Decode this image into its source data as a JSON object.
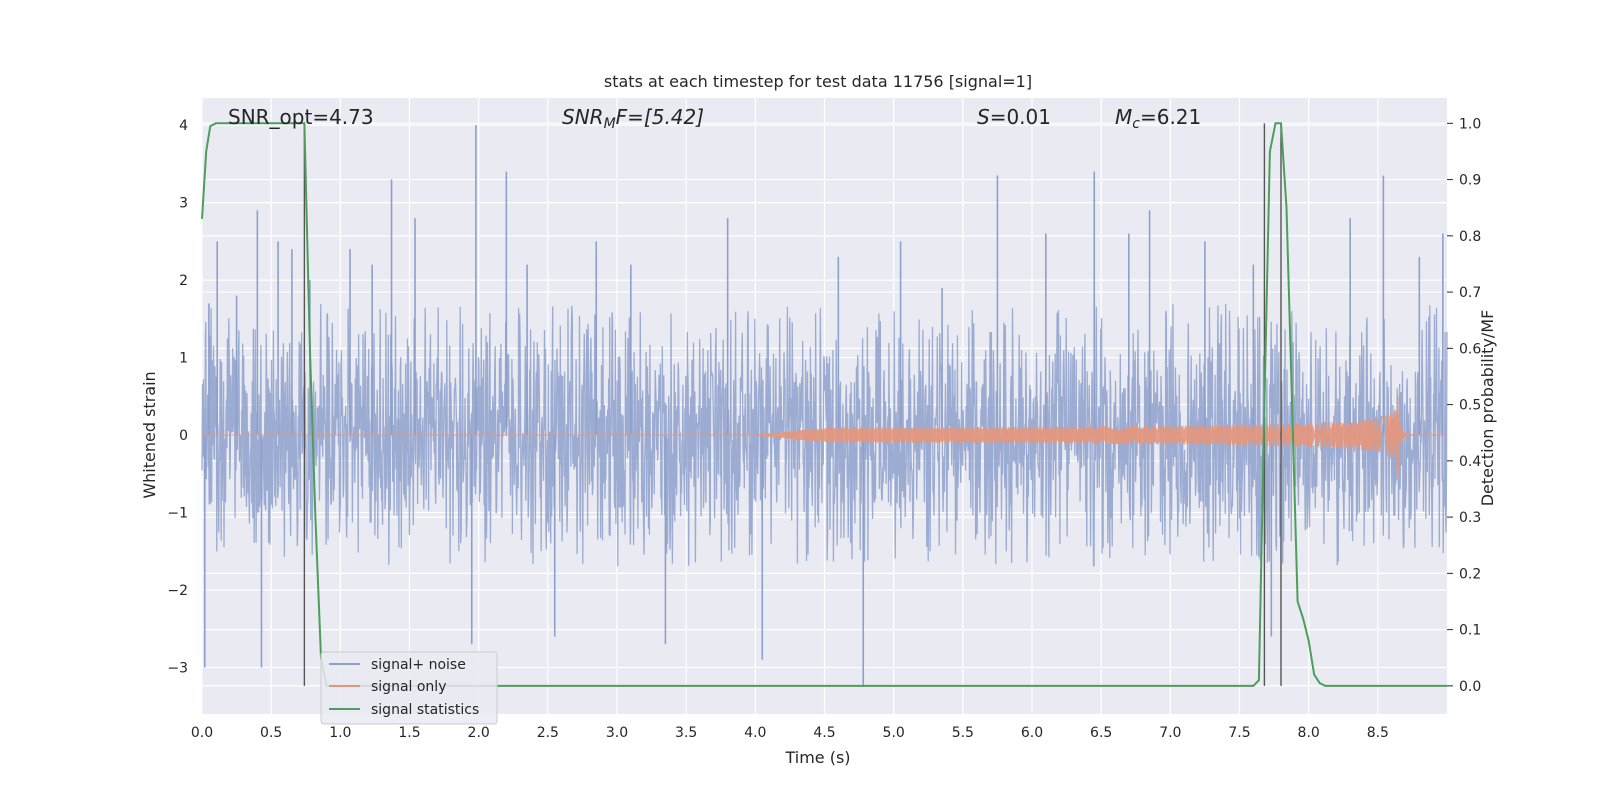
{
  "chart_data": {
    "type": "line",
    "title": "stats at each timestep for test data 11756 [signal=1]",
    "xlabel": "Time (s)",
    "ylabel_left": "Whitened strain",
    "ylabel_right": "Detection probability/MF",
    "xlim": [
      0.0,
      9.0
    ],
    "ylim_left": [
      -3.6,
      4.35
    ],
    "ylim_right": [
      -0.05,
      1.045
    ],
    "xticks": [
      "0.0",
      "0.5",
      "1.0",
      "1.5",
      "2.0",
      "2.5",
      "3.0",
      "3.5",
      "4.0",
      "4.5",
      "5.0",
      "5.5",
      "6.0",
      "6.5",
      "7.0",
      "7.5",
      "8.0",
      "8.5"
    ],
    "yticks_left": [
      "4",
      "3",
      "2",
      "1",
      "0",
      "−1",
      "−2",
      "−3"
    ],
    "yticks_right": [
      "1.0",
      "0.9",
      "0.8",
      "0.7",
      "0.6",
      "0.5",
      "0.4",
      "0.3",
      "0.2",
      "0.1",
      "0.0"
    ],
    "annotations": {
      "snr_opt": "SNR_opt=4.73",
      "snr_mf_main": "SNR",
      "snr_mf_sub": "M",
      "snr_mf_rest": "F=[5.42]",
      "s_main": "S",
      "s_rest": "=0.01",
      "mc_main": "M",
      "mc_sub": "c",
      "mc_rest": "=6.21"
    },
    "legend": {
      "placement": "lower-left",
      "entries": [
        "signal+ noise",
        "signal only",
        "signal statistics"
      ]
    },
    "series": [
      {
        "name": "signal+ noise",
        "axis": "left",
        "color": "#8da0cb",
        "kind": "noise",
        "typical_range": [
          -1.7,
          1.7
        ],
        "peaks": [
          [
            0.02,
            -3.0
          ],
          [
            0.05,
            1.7
          ],
          [
            0.11,
            2.5
          ],
          [
            0.25,
            1.8
          ],
          [
            0.4,
            2.9
          ],
          [
            0.43,
            -3.0
          ],
          [
            0.55,
            2.5
          ],
          [
            0.65,
            2.4
          ],
          [
            0.78,
            2.0
          ],
          [
            1.07,
            2.4
          ],
          [
            1.23,
            2.2
          ],
          [
            1.37,
            3.3
          ],
          [
            1.54,
            2.8
          ],
          [
            1.98,
            4.0
          ],
          [
            1.95,
            -2.7
          ],
          [
            2.2,
            3.4
          ],
          [
            2.35,
            2.2
          ],
          [
            2.55,
            -2.6
          ],
          [
            2.85,
            2.5
          ],
          [
            3.1,
            2.2
          ],
          [
            3.35,
            -2.7
          ],
          [
            3.8,
            2.8
          ],
          [
            4.05,
            -2.9
          ],
          [
            4.6,
            2.3
          ],
          [
            4.78,
            -3.25
          ],
          [
            5.05,
            2.5
          ],
          [
            5.35,
            1.9
          ],
          [
            5.75,
            3.35
          ],
          [
            6.1,
            2.6
          ],
          [
            6.45,
            3.4
          ],
          [
            6.7,
            2.6
          ],
          [
            6.85,
            2.9
          ],
          [
            7.25,
            2.5
          ],
          [
            7.6,
            2.2
          ],
          [
            7.73,
            -2.6
          ],
          [
            8.3,
            2.8
          ],
          [
            8.54,
            3.35
          ],
          [
            8.8,
            2.3
          ],
          [
            8.97,
            2.6
          ]
        ]
      },
      {
        "name": "signal only",
        "axis": "left",
        "color": "#e5967a",
        "kind": "chirp",
        "t_start": 4.0,
        "t_merge": 8.65,
        "peak_amplitude": 0.55
      },
      {
        "name": "signal statistics",
        "axis": "right",
        "color": "#4c9e5a",
        "x": [
          0.0,
          0.03,
          0.06,
          0.1,
          0.2,
          0.4,
          0.6,
          0.7,
          0.74,
          0.78,
          0.82,
          0.86,
          0.9,
          7.6,
          7.64,
          7.68,
          7.72,
          7.76,
          7.8,
          7.84,
          7.88,
          7.92,
          7.96,
          8.0,
          8.04,
          8.08,
          8.12,
          8.16,
          9.0
        ],
        "y": [
          0.83,
          0.95,
          0.995,
          1.0,
          1.0,
          1.0,
          1.0,
          1.0,
          1.0,
          0.6,
          0.3,
          0.05,
          0.0,
          0.0,
          0.01,
          0.5,
          0.95,
          1.0,
          1.0,
          0.85,
          0.5,
          0.15,
          0.12,
          0.08,
          0.02,
          0.005,
          0.0,
          0.0,
          0.0
        ]
      }
    ],
    "markers": {
      "color": "#555555",
      "x": [
        0.74,
        7.68,
        7.8
      ],
      "span_right": [
        0.0,
        1.0
      ]
    }
  }
}
